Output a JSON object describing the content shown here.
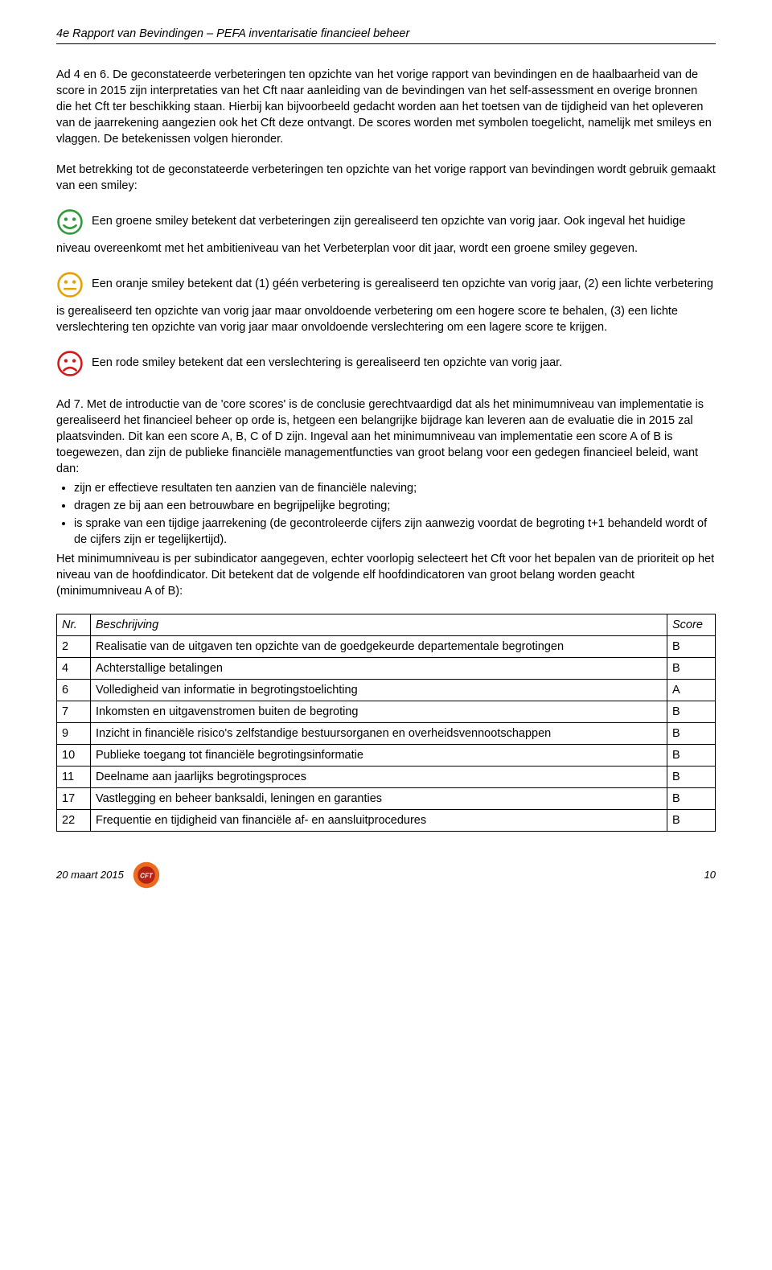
{
  "header_title": "4e Rapport van Bevindingen – PEFA inventarisatie financieel beheer",
  "p_ad46_intro": "Ad 4 en 6. De geconstateerde verbeteringen ten opzichte van het vorige rapport van bevindingen en de haalbaarheid van de score in 2015 zijn interpretaties van het Cft naar aanleiding van de bevindingen van het self-assessment en overige bronnen die het Cft ter beschikking staan. Hierbij kan bijvoorbeeld gedacht worden aan het toetsen van de tijdigheid van het opleveren van de jaarrekening aangezien ook het Cft deze ontvangt. De scores worden met symbolen toegelicht, namelijk met smileys en vlaggen. De betekenissen volgen hieronder.",
  "p_smiley_intro": "Met betrekking tot de geconstateerde verbeteringen ten opzichte van het vorige rapport van bevindingen wordt gebruik gemaakt van een smiley:",
  "smiley_green_text": "Een groene smiley betekent dat verbeteringen zijn gerealiseerd ten opzichte van vorig jaar. Ook ingeval het huidige niveau overeenkomt met het ambitieniveau van het Verbeterplan voor dit jaar, wordt een groene smiley gegeven.",
  "smiley_orange_text": "Een oranje smiley betekent dat (1) géén verbetering is gerealiseerd ten opzichte van vorig jaar, (2) een lichte verbetering is gerealiseerd ten opzichte van vorig jaar maar onvoldoende verbetering om een hogere score te behalen, (3) een lichte verslechtering ten opzichte van vorig jaar maar onvoldoende verslechtering om een lagere score te krijgen.",
  "smiley_red_text": "Een rode smiley betekent dat een verslechtering is gerealiseerd ten opzichte van vorig jaar.",
  "p_ad7_a": "Ad 7. Met de introductie van de 'core scores' is de conclusie gerechtvaardigd dat als het minimumniveau van implementatie is gerealiseerd het financieel beheer op orde is, hetgeen een belangrijke bijdrage kan leveren aan de evaluatie die in 2015 zal plaatsvinden. Dit kan een score A, B, C of D zijn. Ingeval aan het minimumniveau van implementatie een score A of B is toegewezen, dan zijn de publieke financiële managementfuncties van groot belang voor een gedegen financieel beleid, want dan:",
  "bullets": [
    "zijn er effectieve resultaten ten aanzien van de financiële naleving;",
    "dragen ze bij aan een betrouwbare en begrijpelijke begroting;",
    "is sprake van een tijdige jaarrekening (de gecontroleerde cijfers zijn aanwezig voordat de begroting t+1 behandeld wordt of de cijfers zijn er tegelijkertijd)."
  ],
  "p_ad7_b": "Het minimumniveau is per subindicator aangegeven, echter voorlopig selecteert het Cft voor het bepalen van de prioriteit op het niveau van de hoofdindicator. Dit betekent dat de volgende elf hoofdindicatoren van groot belang worden geacht (minimumniveau A of B):",
  "table": {
    "header_nr": "Nr.",
    "header_desc": "Beschrijving",
    "header_score": "Score",
    "rows": [
      {
        "nr": "2",
        "desc": "Realisatie van de uitgaven ten opzichte van de goedgekeurde departementale begrotingen",
        "score": "B"
      },
      {
        "nr": "4",
        "desc": "Achterstallige betalingen",
        "score": "B"
      },
      {
        "nr": "6",
        "desc": "Volledigheid van informatie in begrotingstoelichting",
        "score": "A"
      },
      {
        "nr": "7",
        "desc": "Inkomsten en uitgavenstromen buiten de begroting",
        "score": "B"
      },
      {
        "nr": "9",
        "desc": "Inzicht in financiële risico's zelfstandige bestuursorganen en overheidsvennootschappen",
        "score": "B"
      },
      {
        "nr": "10",
        "desc": "Publieke toegang tot financiële begrotingsinformatie",
        "score": "B"
      },
      {
        "nr": "11",
        "desc": "Deelname aan jaarlijks begrotingsproces",
        "score": "B"
      },
      {
        "nr": "17",
        "desc": "Vastlegging en beheer banksaldi, leningen en garanties",
        "score": "B"
      },
      {
        "nr": "22",
        "desc": "Frequentie en tijdigheid van financiële af- en aansluitprocedures",
        "score": "B"
      }
    ]
  },
  "colors": {
    "smiley_green": "#2e9b3a",
    "smiley_orange": "#e6a100",
    "smiley_red": "#d11a1a",
    "logo_outer": "#ed6b1f",
    "logo_inner": "#b22217"
  },
  "footer_date": "20 maart 2015",
  "footer_page": "10",
  "logo_text": "CFT"
}
